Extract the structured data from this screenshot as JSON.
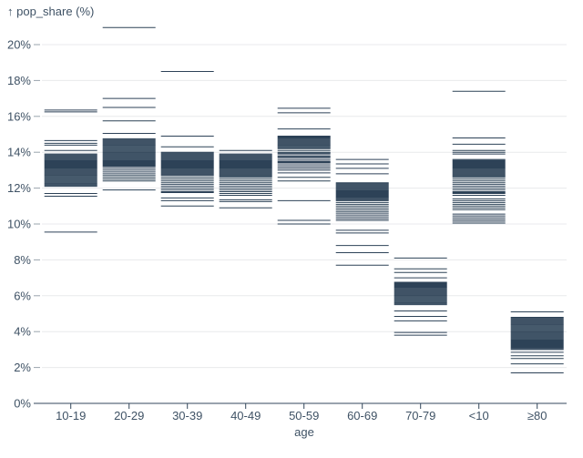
{
  "colors": {
    "background": "#ffffff",
    "tick_stroke": "#2d4257",
    "axis_text": "#3f5265",
    "axis_line": "#33475c",
    "grid_line": "#e8eaec",
    "y_dash": "#9aa4ad"
  },
  "chart_data": {
    "type": "tick",
    "title": "",
    "ylabel": "pop_share (%)",
    "ylabel_display": "↑ pop_share (%)",
    "xlabel": "age",
    "grid": true,
    "legend": "none",
    "ylim": [
      0,
      21.5
    ],
    "y_ticks": [
      0,
      2,
      4,
      6,
      8,
      10,
      12,
      14,
      16,
      18,
      20
    ],
    "y_tick_suffix": "%",
    "categories": [
      "10-19",
      "20-29",
      "30-39",
      "40-49",
      "50-59",
      "60-69",
      "70-79",
      "<10",
      "≥80"
    ],
    "series": [
      {
        "category": "10-19",
        "values": [
          16.35,
          16.25,
          14.65,
          14.5,
          14.4,
          14.1,
          13.9,
          13.85,
          13.8,
          13.75,
          13.7,
          13.65,
          13.6,
          13.55,
          13.5,
          13.45,
          13.4,
          13.35,
          13.3,
          13.25,
          13.2,
          13.15,
          13.1,
          13.05,
          13.0,
          12.95,
          12.9,
          12.85,
          12.8,
          12.75,
          12.7,
          12.65,
          12.6,
          12.55,
          12.5,
          12.45,
          12.4,
          12.35,
          12.3,
          12.25,
          12.2,
          12.15,
          12.1,
          11.7,
          11.55,
          9.55
        ]
      },
      {
        "category": "20-29",
        "values": [
          20.95,
          17.0,
          16.5,
          15.75,
          15.05,
          14.75,
          14.7,
          14.65,
          14.6,
          14.55,
          14.5,
          14.45,
          14.4,
          14.35,
          14.3,
          14.25,
          14.2,
          14.15,
          14.1,
          14.05,
          14.0,
          13.95,
          13.9,
          13.85,
          13.8,
          13.75,
          13.7,
          13.65,
          13.6,
          13.55,
          13.5,
          13.45,
          13.4,
          13.35,
          13.3,
          13.25,
          13.2,
          13.1,
          13.0,
          12.9,
          12.8,
          12.7,
          12.6,
          12.5,
          12.4,
          11.9
        ]
      },
      {
        "category": "30-39",
        "values": [
          18.5,
          14.9,
          14.3,
          14.0,
          13.95,
          13.9,
          13.85,
          13.8,
          13.75,
          13.7,
          13.65,
          13.6,
          13.55,
          13.5,
          13.45,
          13.4,
          13.35,
          13.3,
          13.25,
          13.2,
          13.15,
          13.1,
          13.05,
          13.0,
          12.95,
          12.9,
          12.85,
          12.8,
          12.75,
          12.7,
          12.6,
          12.5,
          12.4,
          12.3,
          12.2,
          12.1,
          12.0,
          11.9,
          11.8,
          11.75,
          11.45,
          11.3,
          11.0
        ]
      },
      {
        "category": "40-49",
        "values": [
          14.1,
          13.9,
          13.85,
          13.8,
          13.75,
          13.7,
          13.65,
          13.6,
          13.55,
          13.5,
          13.45,
          13.4,
          13.35,
          13.3,
          13.25,
          13.2,
          13.15,
          13.1,
          13.05,
          13.0,
          12.95,
          12.9,
          12.85,
          12.8,
          12.75,
          12.7,
          12.65,
          12.6,
          12.5,
          12.4,
          12.3,
          12.2,
          12.1,
          12.0,
          11.9,
          11.8,
          11.7,
          11.6,
          11.35,
          11.25,
          10.9
        ]
      },
      {
        "category": "50-59",
        "values": [
          16.45,
          16.2,
          15.3,
          14.9,
          14.85,
          14.8,
          14.75,
          14.7,
          14.65,
          14.6,
          14.55,
          14.5,
          14.45,
          14.4,
          14.35,
          14.3,
          14.25,
          14.2,
          14.1,
          14.0,
          13.95,
          13.9,
          13.8,
          13.75,
          13.7,
          13.6,
          13.5,
          13.45,
          13.4,
          13.3,
          13.2,
          13.1,
          13.0,
          12.85,
          12.6,
          12.4,
          11.3,
          10.2,
          10.0
        ]
      },
      {
        "category": "60-69",
        "values": [
          13.6,
          13.35,
          13.1,
          12.8,
          12.3,
          12.25,
          12.2,
          12.15,
          12.1,
          12.05,
          12.0,
          11.95,
          11.9,
          11.85,
          11.8,
          11.75,
          11.7,
          11.65,
          11.6,
          11.55,
          11.5,
          11.45,
          11.4,
          11.35,
          11.3,
          11.2,
          11.1,
          11.0,
          10.9,
          10.8,
          10.7,
          10.6,
          10.5,
          10.4,
          10.3,
          10.2,
          9.65,
          9.5,
          8.8,
          8.4,
          7.7
        ]
      },
      {
        "category": "70-79",
        "values": [
          8.1,
          7.5,
          7.3,
          7.0,
          6.75,
          6.7,
          6.65,
          6.6,
          6.55,
          6.5,
          6.45,
          6.4,
          6.35,
          6.3,
          6.25,
          6.2,
          6.15,
          6.1,
          6.05,
          6.0,
          5.95,
          5.9,
          5.85,
          5.8,
          5.75,
          5.7,
          5.65,
          5.6,
          5.55,
          5.5,
          5.15,
          4.85,
          4.6,
          3.95,
          3.8
        ]
      },
      {
        "category": "<10",
        "values": [
          17.4,
          14.8,
          14.45,
          14.1,
          14.0,
          13.9,
          13.6,
          13.55,
          13.5,
          13.45,
          13.4,
          13.35,
          13.3,
          13.25,
          13.2,
          13.15,
          13.1,
          13.05,
          13.0,
          12.95,
          12.9,
          12.85,
          12.8,
          12.75,
          12.7,
          12.65,
          12.6,
          12.5,
          12.4,
          12.3,
          12.2,
          12.1,
          12.0,
          11.9,
          11.8,
          11.75,
          11.7,
          11.6,
          11.4,
          11.3,
          11.2,
          11.1,
          11.0,
          10.9,
          10.8,
          10.55,
          10.45,
          10.35,
          10.25,
          10.15,
          10.05
        ]
      },
      {
        "category": "≥80",
        "values": [
          5.1,
          4.8,
          4.75,
          4.7,
          4.65,
          4.6,
          4.55,
          4.5,
          4.45,
          4.4,
          4.35,
          4.3,
          4.25,
          4.2,
          4.15,
          4.1,
          4.05,
          4.0,
          3.95,
          3.9,
          3.85,
          3.8,
          3.75,
          3.7,
          3.65,
          3.6,
          3.55,
          3.5,
          3.45,
          3.4,
          3.35,
          3.3,
          3.25,
          3.2,
          3.15,
          3.1,
          3.05,
          3.0,
          2.85,
          2.65,
          2.5,
          2.2,
          1.7
        ]
      }
    ]
  }
}
